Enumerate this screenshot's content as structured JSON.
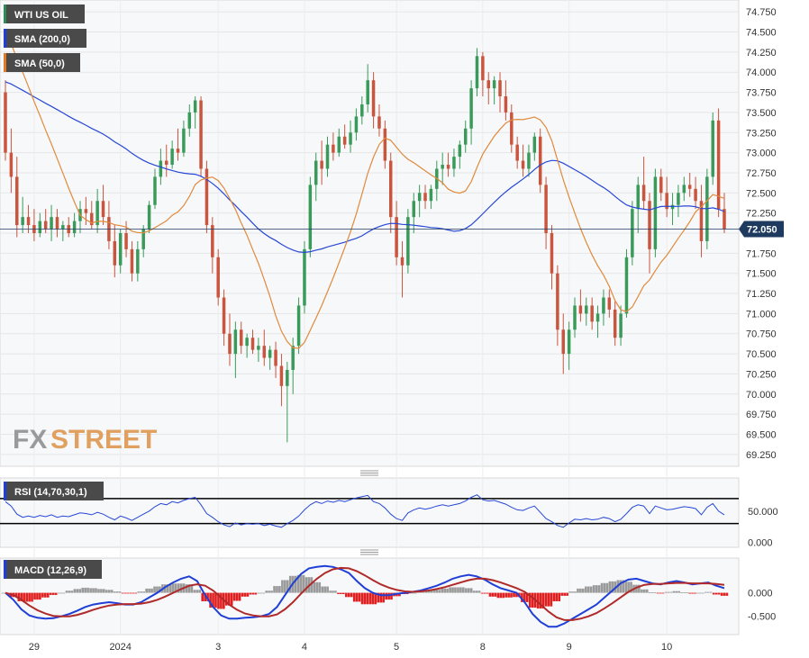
{
  "chart_data": [
    {
      "type": "candlestick",
      "title": "WTI US OIL",
      "last_price": 72.05,
      "last_price_label": "72.050",
      "ylim": [
        69.125,
        74.875
      ],
      "y_ticks": [
        "74.750",
        "74.500",
        "74.250",
        "74.000",
        "73.750",
        "73.500",
        "73.250",
        "73.000",
        "72.750",
        "72.500",
        "72.250",
        "72.000",
        "71.750",
        "71.500",
        "71.250",
        "71.000",
        "70.750",
        "70.500",
        "70.250",
        "70.000",
        "69.750",
        "69.500",
        "69.250"
      ],
      "x_ticks": [
        "29",
        "2024",
        "3",
        "4",
        "5",
        "8",
        "9",
        "10"
      ],
      "legend": [
        {
          "label": "WTI US OIL",
          "color": "#2e8b57"
        },
        {
          "label": "SMA (200,0)",
          "color": "#1f3fd6"
        },
        {
          "label": "SMA (50,0)",
          "color": "#e07b22"
        }
      ],
      "colors": {
        "up": "#3a9a5a",
        "down": "#c9553e",
        "sma200": "#2747d6",
        "sma50": "#e08a3c"
      },
      "candles": [
        [
          73.75,
          73.9,
          72.9,
          73.0
        ],
        [
          73.0,
          73.3,
          72.5,
          72.7
        ],
        [
          72.7,
          72.95,
          71.95,
          72.1
        ],
        [
          72.1,
          72.45,
          72.0,
          72.2
        ],
        [
          72.2,
          72.35,
          72.0,
          72.1
        ],
        [
          72.1,
          72.3,
          71.9,
          72.0
        ],
        [
          72.0,
          72.25,
          71.95,
          72.15
        ],
        [
          72.15,
          72.3,
          72.0,
          72.05
        ],
        [
          72.05,
          72.35,
          71.9,
          72.2
        ],
        [
          72.2,
          72.3,
          71.95,
          72.05
        ],
        [
          72.05,
          72.15,
          71.9,
          72.1
        ],
        [
          72.1,
          72.2,
          71.95,
          72.0
        ],
        [
          72.0,
          72.25,
          71.95,
          72.15
        ],
        [
          72.15,
          72.4,
          72.0,
          72.3
        ],
        [
          72.3,
          72.45,
          72.1,
          72.25
        ],
        [
          72.25,
          72.4,
          72.05,
          72.1
        ],
        [
          72.1,
          72.55,
          72.0,
          72.4
        ],
        [
          72.4,
          72.6,
          72.1,
          72.2
        ],
        [
          72.2,
          72.4,
          71.8,
          71.9
        ],
        [
          71.9,
          72.1,
          71.45,
          71.6
        ],
        [
          71.6,
          72.05,
          71.5,
          72.0
        ],
        [
          72.0,
          72.15,
          71.7,
          71.8
        ],
        [
          71.8,
          71.9,
          71.4,
          71.5
        ],
        [
          71.5,
          71.9,
          71.4,
          71.8
        ],
        [
          71.8,
          72.1,
          71.7,
          72.05
        ],
        [
          72.05,
          72.4,
          72.0,
          72.35
        ],
        [
          72.35,
          72.8,
          72.3,
          72.7
        ],
        [
          72.7,
          73.05,
          72.6,
          72.9
        ],
        [
          72.9,
          73.1,
          72.7,
          72.85
        ],
        [
          72.85,
          73.15,
          72.8,
          73.05
        ],
        [
          73.05,
          73.3,
          72.9,
          73.0
        ],
        [
          73.0,
          73.4,
          72.95,
          73.3
        ],
        [
          73.3,
          73.6,
          73.2,
          73.5
        ],
        [
          73.5,
          73.7,
          73.3,
          73.65
        ],
        [
          73.65,
          73.7,
          72.7,
          72.8
        ],
        [
          72.8,
          72.9,
          72.0,
          72.1
        ],
        [
          72.1,
          72.2,
          71.5,
          71.7
        ],
        [
          71.7,
          71.8,
          71.1,
          71.2
        ],
        [
          71.2,
          71.3,
          70.6,
          70.75
        ],
        [
          70.75,
          71.0,
          70.35,
          70.5
        ],
        [
          70.5,
          70.9,
          70.2,
          70.8
        ],
        [
          70.8,
          70.9,
          70.5,
          70.6
        ],
        [
          70.6,
          70.75,
          70.45,
          70.7
        ],
        [
          70.7,
          70.8,
          70.5,
          70.55
        ],
        [
          70.55,
          70.7,
          70.4,
          70.6
        ],
        [
          70.6,
          70.8,
          70.35,
          70.45
        ],
        [
          70.45,
          70.6,
          70.3,
          70.55
        ],
        [
          70.55,
          70.65,
          70.2,
          70.35
        ],
        [
          70.35,
          70.5,
          69.85,
          70.1
        ],
        [
          70.1,
          70.4,
          69.4,
          70.3
        ],
        [
          70.3,
          70.7,
          70.0,
          70.6
        ],
        [
          70.6,
          71.2,
          70.5,
          71.1
        ],
        [
          71.1,
          71.9,
          71.0,
          71.8
        ],
        [
          71.8,
          72.7,
          71.7,
          72.6
        ],
        [
          72.6,
          73.0,
          72.4,
          72.9
        ],
        [
          72.9,
          73.15,
          72.6,
          72.8
        ],
        [
          72.8,
          73.2,
          72.7,
          73.1
        ],
        [
          73.1,
          73.25,
          72.9,
          73.0
        ],
        [
          73.0,
          73.3,
          72.95,
          73.2
        ],
        [
          73.2,
          73.35,
          73.05,
          73.1
        ],
        [
          73.1,
          73.4,
          73.0,
          73.25
        ],
        [
          73.25,
          73.55,
          73.15,
          73.45
        ],
        [
          73.45,
          73.7,
          73.35,
          73.6
        ],
        [
          73.6,
          74.1,
          73.5,
          73.9
        ],
        [
          73.9,
          74.0,
          73.3,
          73.45
        ],
        [
          73.45,
          73.6,
          73.2,
          73.3
        ],
        [
          73.3,
          73.4,
          72.8,
          72.9
        ],
        [
          72.9,
          73.0,
          72.0,
          72.2
        ],
        [
          72.2,
          72.4,
          71.6,
          71.7
        ],
        [
          71.7,
          71.9,
          71.2,
          71.6
        ],
        [
          71.6,
          72.3,
          71.5,
          72.2
        ],
        [
          72.2,
          72.5,
          72.0,
          72.4
        ],
        [
          72.4,
          72.6,
          72.2,
          72.5
        ],
        [
          72.5,
          72.6,
          72.3,
          72.4
        ],
        [
          72.4,
          72.6,
          72.3,
          72.55
        ],
        [
          72.55,
          72.9,
          72.4,
          72.8
        ],
        [
          72.8,
          73.0,
          72.6,
          72.85
        ],
        [
          72.85,
          73.0,
          72.7,
          72.8
        ],
        [
          72.8,
          73.05,
          72.7,
          72.95
        ],
        [
          72.95,
          73.15,
          72.8,
          73.1
        ],
        [
          73.1,
          73.4,
          73.0,
          73.3
        ],
        [
          73.3,
          73.9,
          73.1,
          73.8
        ],
        [
          73.8,
          74.3,
          73.7,
          74.2
        ],
        [
          74.2,
          74.25,
          73.7,
          73.9
        ],
        [
          73.9,
          74.0,
          73.6,
          73.8
        ],
        [
          73.8,
          73.95,
          73.6,
          73.9
        ],
        [
          73.9,
          74.0,
          73.5,
          73.7
        ],
        [
          73.7,
          73.9,
          73.4,
          73.5
        ],
        [
          73.5,
          73.6,
          73.0,
          73.1
        ],
        [
          73.1,
          73.2,
          72.8,
          72.9
        ],
        [
          72.9,
          73.1,
          72.7,
          72.8
        ],
        [
          72.8,
          73.1,
          72.7,
          73.0
        ],
        [
          73.0,
          73.25,
          72.9,
          73.2
        ],
        [
          73.2,
          73.3,
          72.5,
          72.6
        ],
        [
          72.6,
          72.7,
          71.8,
          72.0
        ],
        [
          72.0,
          72.1,
          71.3,
          71.5
        ],
        [
          71.5,
          71.6,
          70.6,
          70.8
        ],
        [
          70.8,
          71.0,
          70.25,
          70.5
        ],
        [
          70.5,
          70.9,
          70.3,
          70.8
        ],
        [
          70.8,
          71.2,
          70.7,
          71.1
        ],
        [
          71.1,
          71.3,
          70.9,
          71.0
        ],
        [
          71.0,
          71.2,
          70.85,
          71.1
        ],
        [
          71.1,
          71.2,
          70.8,
          70.9
        ],
        [
          70.9,
          71.1,
          70.7,
          71.0
        ],
        [
          71.0,
          71.3,
          70.85,
          71.2
        ],
        [
          71.2,
          71.3,
          70.95,
          71.05
        ],
        [
          71.05,
          71.15,
          70.6,
          70.7
        ],
        [
          70.7,
          71.1,
          70.6,
          71.0
        ],
        [
          71.0,
          71.8,
          70.95,
          71.7
        ],
        [
          71.7,
          72.4,
          71.6,
          72.3
        ],
        [
          72.3,
          72.7,
          72.0,
          72.6
        ],
        [
          72.6,
          72.95,
          72.3,
          72.4
        ],
        [
          72.4,
          72.5,
          71.5,
          71.8
        ],
        [
          71.8,
          72.8,
          71.7,
          72.7
        ],
        [
          72.7,
          72.8,
          72.4,
          72.5
        ],
        [
          72.5,
          72.7,
          72.2,
          72.3
        ],
        [
          72.3,
          72.5,
          72.1,
          72.35
        ],
        [
          72.35,
          72.6,
          72.2,
          72.5
        ],
        [
          72.5,
          72.7,
          72.4,
          72.6
        ],
        [
          72.6,
          72.75,
          72.45,
          72.55
        ],
        [
          72.55,
          72.7,
          72.3,
          72.4
        ],
        [
          72.4,
          72.6,
          71.7,
          71.9
        ],
        [
          71.9,
          72.8,
          71.8,
          72.7
        ],
        [
          72.7,
          73.5,
          72.6,
          73.4
        ],
        [
          73.4,
          73.55,
          72.2,
          72.3
        ],
        [
          72.3,
          72.5,
          72.0,
          72.05
        ]
      ]
    },
    {
      "type": "line",
      "title": "RSI (14,70,30,1)",
      "y_ticks": [
        "50.000",
        "0.000"
      ],
      "levels": [
        70,
        30
      ],
      "ylim": [
        -5,
        100
      ],
      "values": [
        65,
        58,
        45,
        40,
        42,
        40,
        43,
        41,
        44,
        40,
        42,
        41,
        44,
        47,
        46,
        44,
        48,
        45,
        40,
        36,
        42,
        39,
        35,
        40,
        45,
        50,
        57,
        62,
        60,
        65,
        63,
        67,
        70,
        72,
        60,
        46,
        40,
        33,
        28,
        25,
        31,
        28,
        30,
        29,
        30,
        27,
        29,
        26,
        24,
        30,
        35,
        42,
        52,
        60,
        65,
        62,
        66,
        64,
        67,
        65,
        68,
        71,
        73,
        75,
        65,
        62,
        55,
        45,
        38,
        35,
        47,
        52,
        55,
        53,
        55,
        58,
        60,
        58,
        60,
        62,
        66,
        72,
        76,
        68,
        66,
        67,
        64,
        61,
        56,
        52,
        51,
        55,
        58,
        48,
        38,
        33,
        27,
        24,
        31,
        37,
        36,
        38,
        36,
        37,
        40,
        38,
        33,
        37,
        46,
        56,
        60,
        58,
        46,
        58,
        55,
        52,
        53,
        55,
        57,
        56,
        54,
        44,
        56,
        62,
        50,
        44
      ]
    },
    {
      "type": "macd",
      "title": "MACD (12,26,9)",
      "y_ticks": [
        "0.000",
        "-0.500"
      ],
      "ylim": [
        -0.85,
        0.7
      ],
      "x_ticks": [
        "29",
        "2024",
        "3",
        "4",
        "5",
        "8",
        "9",
        "10"
      ],
      "macd_line": [
        0.0,
        -0.15,
        -0.35,
        -0.48,
        -0.53,
        -0.55,
        -0.54,
        -0.5,
        -0.45,
        -0.38,
        -0.3,
        -0.25,
        -0.22,
        -0.2,
        -0.22,
        -0.25,
        -0.25,
        -0.2,
        -0.1,
        0.0,
        0.12,
        0.22,
        0.3,
        0.35,
        0.25,
        -0.05,
        -0.3,
        -0.48,
        -0.55,
        -0.55,
        -0.53,
        -0.52,
        -0.5,
        -0.45,
        -0.3,
        -0.05,
        0.2,
        0.4,
        0.52,
        0.55,
        0.57,
        0.55,
        0.5,
        0.42,
        0.25,
        0.1,
        0.0,
        -0.05,
        -0.05,
        -0.02,
        0.0,
        0.02,
        0.05,
        0.1,
        0.15,
        0.22,
        0.3,
        0.35,
        0.38,
        0.35,
        0.28,
        0.18,
        0.1,
        0.05,
        0.0,
        -0.2,
        -0.45,
        -0.62,
        -0.72,
        -0.72,
        -0.65,
        -0.55,
        -0.45,
        -0.35,
        -0.25,
        -0.1,
        0.05,
        0.2,
        0.28,
        0.3,
        0.25,
        0.2,
        0.18,
        0.22,
        0.25,
        0.22,
        0.18,
        0.2,
        0.22,
        0.15,
        0.1
      ],
      "signal_line": [
        0.0,
        -0.05,
        -0.15,
        -0.27,
        -0.37,
        -0.44,
        -0.49,
        -0.5,
        -0.5,
        -0.47,
        -0.42,
        -0.36,
        -0.31,
        -0.27,
        -0.25,
        -0.24,
        -0.24,
        -0.23,
        -0.2,
        -0.15,
        -0.08,
        0.0,
        0.08,
        0.15,
        0.18,
        0.15,
        0.05,
        -0.1,
        -0.25,
        -0.36,
        -0.44,
        -0.48,
        -0.5,
        -0.5,
        -0.46,
        -0.35,
        -0.2,
        -0.02,
        0.15,
        0.3,
        0.42,
        0.5,
        0.53,
        0.52,
        0.46,
        0.37,
        0.27,
        0.18,
        0.11,
        0.06,
        0.03,
        0.02,
        0.03,
        0.05,
        0.08,
        0.12,
        0.17,
        0.22,
        0.27,
        0.3,
        0.3,
        0.27,
        0.22,
        0.16,
        0.1,
        0.02,
        -0.1,
        -0.25,
        -0.4,
        -0.52,
        -0.58,
        -0.58,
        -0.55,
        -0.5,
        -0.43,
        -0.33,
        -0.22,
        -0.1,
        0.02,
        0.11,
        0.17,
        0.19,
        0.19,
        0.2,
        0.21,
        0.21,
        0.2,
        0.2,
        0.2,
        0.19,
        0.17
      ]
    }
  ],
  "logo": {
    "part1": "FX",
    "part2": "STREET"
  }
}
